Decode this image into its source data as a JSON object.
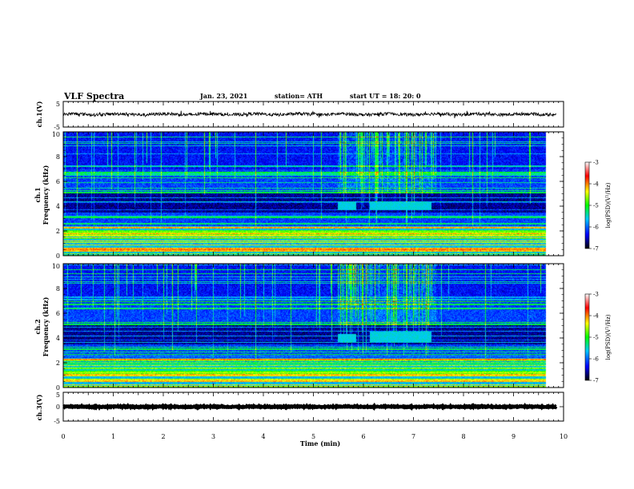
{
  "header": {
    "title": "VLF Spectra",
    "date": "Jan. 23, 2021",
    "station": "station= ATH",
    "start_ut": "start  UT  =   18: 20: 0"
  },
  "chart_data": [
    {
      "type": "line",
      "panel": "ch1-waveform",
      "ylabel": "ch.1(V)",
      "ylim": [
        -5,
        5
      ],
      "y_tick_labels": [
        "5",
        "-5"
      ],
      "xlim": [
        0,
        10
      ],
      "trace": {
        "baseline": 0,
        "noise_amplitude": 0.6,
        "color": "#000000"
      }
    },
    {
      "type": "heatmap",
      "panel": "ch1-spectrogram",
      "ylabel": "ch.1\nFrequency (kHz)",
      "y_tick_labels": [
        "0",
        "2",
        "4",
        "6",
        "8",
        "10"
      ],
      "ylim": [
        0,
        10
      ],
      "xlim": [
        0,
        10
      ],
      "colorbar": {
        "label": "log(PSD)(V²/Hz)",
        "range": [
          -7,
          -3
        ],
        "tick_labels": [
          "-3",
          "-4",
          "-5",
          "-6",
          "-7"
        ],
        "colors": [
          "#000000",
          "#0000ff",
          "#00c8ff",
          "#00ff00",
          "#ffff00",
          "#ff0000",
          "#ffffff"
        ]
      },
      "features": {
        "dark_band_khz": [
          3.5,
          5.0
        ],
        "noise_burst_min": [
          5.6,
          7.6
        ],
        "cyan_blocks": [
          {
            "t": [
              5.6,
              5.98
            ],
            "f_khz": [
              3.7,
              4.3
            ]
          },
          {
            "t": [
              6.25,
              7.5
            ],
            "f_khz": [
              3.7,
              4.3
            ]
          }
        ]
      }
    },
    {
      "type": "heatmap",
      "panel": "ch2-spectrogram",
      "ylabel": "ch.2\nFrequency (kHz)",
      "y_tick_labels": [
        "0",
        "2",
        "4",
        "6",
        "8",
        "10"
      ],
      "ylim": [
        0,
        10
      ],
      "xlim": [
        0,
        10
      ],
      "colorbar": {
        "label": "log(PSD)(V²/Hz)",
        "range": [
          -7,
          -3
        ],
        "tick_labels": [
          "-3",
          "-4",
          "-5",
          "-6",
          "-7"
        ],
        "colors": [
          "#000000",
          "#0000ff",
          "#00c8ff",
          "#00ff00",
          "#ffff00",
          "#ff0000",
          "#ffffff"
        ]
      },
      "features": {
        "dark_band_khz": [
          3.5,
          5.0
        ],
        "noise_burst_min": [
          5.6,
          7.6
        ],
        "cyan_blocks": [
          {
            "t": [
              5.6,
              5.98
            ],
            "f_khz": [
              3.7,
              4.3
            ]
          },
          {
            "t": [
              6.25,
              7.5
            ],
            "f_khz": [
              3.7,
              4.5
            ]
          }
        ]
      }
    },
    {
      "type": "line",
      "panel": "ch3-waveform",
      "ylabel": "ch.3(V)",
      "ylim": [
        -5,
        5
      ],
      "y_tick_labels": [
        "5",
        "0",
        "-5"
      ],
      "xlim": [
        0,
        10
      ],
      "trace": {
        "baseline": 0,
        "noise_amplitude": 0.15,
        "color": "#000000"
      }
    }
  ],
  "x_axis": {
    "label": "Time  (min)",
    "ticks": [
      0,
      1,
      2,
      3,
      4,
      5,
      6,
      7,
      8,
      9,
      10
    ],
    "tick_labels": [
      "0",
      "1",
      "2",
      "3",
      "4",
      "5",
      "6",
      "7",
      "8",
      "9",
      "10"
    ],
    "range": [
      0,
      10
    ],
    "data_end": 9.85
  }
}
